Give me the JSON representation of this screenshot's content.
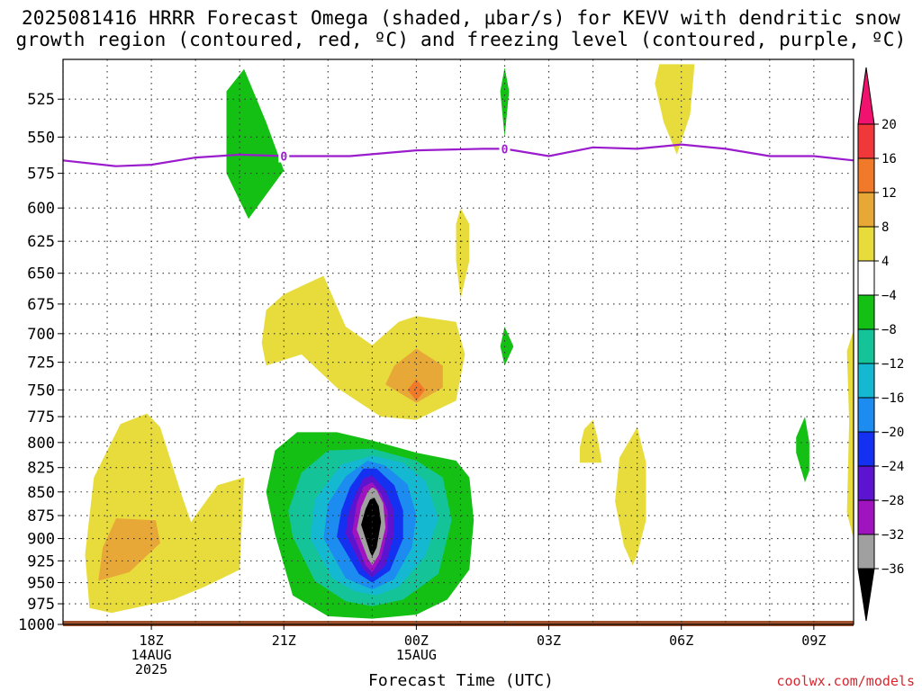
{
  "title": {
    "line1": "2025081416 HRRR Forecast Omega (shaded, µbar/s) for KEVV with dendritic snow",
    "line2": "growth region (contoured, red, ºC) and freezing level (contoured, purple, ºC)"
  },
  "footer": {
    "credit": "coolwx.com/models"
  },
  "chart_data": {
    "type": "heatmap",
    "xlabel": "Forecast Time (UTC)",
    "ylabel": "",
    "y_scale": "log-pressure",
    "ylim": [
      1000,
      500
    ],
    "y_ticks": [
      "525",
      "550",
      "575",
      "600",
      "625",
      "650",
      "675",
      "700",
      "725",
      "750",
      "775",
      "800",
      "825",
      "850",
      "875",
      "900",
      "925",
      "950",
      "975",
      "1000"
    ],
    "x_ticks": [
      {
        "hour": 18,
        "lines": [
          "18Z",
          "14AUG",
          "2025"
        ]
      },
      {
        "hour": 21,
        "lines": [
          "21Z"
        ]
      },
      {
        "hour": 24,
        "lines": [
          "00Z",
          "15AUG"
        ]
      },
      {
        "hour": 27,
        "lines": [
          "03Z"
        ]
      },
      {
        "hour": 30,
        "lines": [
          "06Z"
        ]
      },
      {
        "hour": 33,
        "lines": [
          "09Z"
        ]
      }
    ],
    "xlim_hours": [
      16,
      33.9
    ],
    "grid": true,
    "colorbar": {
      "levels": [
        "20",
        "16",
        "12",
        "8",
        "4",
        "−4",
        "−8",
        "−12",
        "−16",
        "−20",
        "−24",
        "−28",
        "−32",
        "−36"
      ],
      "colors": [
        "#f0126e",
        "#f0383a",
        "#f07a2a",
        "#e8a838",
        "#e8dc3c",
        "#ffffff",
        "#14c014",
        "#14c498",
        "#14b8d0",
        "#1c8cf0",
        "#1430f0",
        "#5c14d0",
        "#a014c0",
        "#a0a0a0",
        "#000000"
      ]
    },
    "freezing_level": {
      "color": "#9a1ccc",
      "label": "0",
      "points": [
        [
          16,
          566
        ],
        [
          17.2,
          570
        ],
        [
          18,
          569
        ],
        [
          19,
          564
        ],
        [
          20,
          562
        ],
        [
          21,
          563
        ],
        [
          22.5,
          563
        ],
        [
          24,
          559
        ],
        [
          25.5,
          558
        ],
        [
          26,
          558
        ],
        [
          27,
          563
        ],
        [
          28,
          557
        ],
        [
          29,
          558
        ],
        [
          30,
          555
        ],
        [
          31,
          558
        ],
        [
          32,
          563
        ],
        [
          33,
          563
        ],
        [
          33.9,
          566
        ]
      ]
    },
    "omega_regions": [
      {
        "value": "4 to 8",
        "color": "#e8dc3c",
        "points": [
          [
            16.6,
            980
          ],
          [
            17.1,
            986
          ],
          [
            18.5,
            970
          ],
          [
            19.2,
            955
          ],
          [
            20,
            935
          ],
          [
            20.1,
            835
          ],
          [
            19.5,
            843
          ],
          [
            19.0,
            875
          ],
          [
            18.9,
            882
          ],
          [
            18.7,
            855
          ],
          [
            18.2,
            785
          ],
          [
            17.9,
            772
          ],
          [
            17.3,
            782
          ],
          [
            16.7,
            835
          ],
          [
            16.5,
            918
          ]
        ]
      },
      {
        "value": "8 to 12",
        "color": "#e8a838",
        "points": [
          [
            16.8,
            948
          ],
          [
            17.5,
            938
          ],
          [
            18.2,
            905
          ],
          [
            18.1,
            880
          ],
          [
            17.2,
            878
          ],
          [
            16.9,
            910
          ]
        ]
      },
      {
        "value": "4 to 8",
        "color": "#e8dc3c",
        "points": [
          [
            20.6,
            728
          ],
          [
            21.4,
            718
          ],
          [
            22.2,
            748
          ],
          [
            23.2,
            775
          ],
          [
            24,
            778
          ],
          [
            24.9,
            760
          ],
          [
            25.1,
            718
          ],
          [
            24.9,
            690
          ],
          [
            24,
            685
          ],
          [
            23.6,
            690
          ],
          [
            23.0,
            710
          ],
          [
            22.4,
            694
          ],
          [
            21.9,
            652
          ],
          [
            21.0,
            667
          ],
          [
            20.6,
            680
          ],
          [
            20.5,
            708
          ]
        ]
      },
      {
        "value": "8 to 12",
        "color": "#e8a838",
        "points": [
          [
            23.3,
            745
          ],
          [
            24,
            762
          ],
          [
            24.6,
            748
          ],
          [
            24.6,
            728
          ],
          [
            24,
            713
          ],
          [
            23.5,
            728
          ]
        ]
      },
      {
        "value": "12 to 16",
        "color": "#f07a2a",
        "points": [
          [
            23.8,
            750
          ],
          [
            24.0,
            760
          ],
          [
            24.2,
            750
          ],
          [
            24.0,
            740
          ]
        ]
      },
      {
        "value": "4 to 8",
        "color": "#e8dc3c",
        "points": [
          [
            25.0,
            600
          ],
          [
            25.2,
            612
          ],
          [
            25.2,
            640
          ],
          [
            25.0,
            671
          ],
          [
            24.9,
            640
          ],
          [
            24.9,
            612
          ]
        ]
      },
      {
        "value": "4 to 8",
        "color": "#e8dc3c",
        "points": [
          [
            29.5,
            503
          ],
          [
            30.3,
            503
          ],
          [
            30.2,
            535
          ],
          [
            29.9,
            562
          ],
          [
            29.6,
            540
          ],
          [
            29.4,
            515
          ]
        ]
      },
      {
        "value": "4 to 8",
        "color": "#e8dc3c",
        "points": [
          [
            27.7,
            820
          ],
          [
            28.2,
            820
          ],
          [
            28.1,
            795
          ],
          [
            28.0,
            778
          ],
          [
            27.8,
            787
          ],
          [
            27.7,
            805
          ]
        ]
      },
      {
        "value": "4 to 8",
        "color": "#e8dc3c",
        "points": [
          [
            28.6,
            815
          ],
          [
            29.0,
            785
          ],
          [
            29.2,
            820
          ],
          [
            29.2,
            880
          ],
          [
            29.0,
            918
          ],
          [
            28.9,
            930
          ],
          [
            28.7,
            908
          ],
          [
            28.5,
            860
          ]
        ]
      },
      {
        "value": "4 to 8",
        "color": "#e8dc3c",
        "points": [
          [
            33.9,
            697
          ],
          [
            33.75,
            715
          ],
          [
            33.8,
            780
          ],
          [
            33.75,
            872
          ],
          [
            33.9,
            900
          ]
        ]
      },
      {
        "value": "-4 to -8",
        "color": "#14c014",
        "points": [
          [
            19.7,
            520
          ],
          [
            20.1,
            506
          ],
          [
            20.6,
            540
          ],
          [
            21.0,
            573
          ],
          [
            20.2,
            608
          ],
          [
            19.7,
            575
          ],
          [
            19.7,
            545
          ]
        ]
      },
      {
        "value": "-4 to -8",
        "color": "#14c014",
        "points": [
          [
            25.9,
            520
          ],
          [
            26.0,
            505
          ],
          [
            26.1,
            520
          ],
          [
            26.0,
            550
          ]
        ]
      },
      {
        "value": "-4 to -8",
        "color": "#14c014",
        "points": [
          [
            25.9,
            711
          ],
          [
            26.0,
            694
          ],
          [
            26.2,
            711
          ],
          [
            26.0,
            728
          ]
        ]
      },
      {
        "value": "-4 to -8",
        "color": "#14c014",
        "points": [
          [
            32.6,
            795
          ],
          [
            32.8,
            775
          ],
          [
            32.9,
            800
          ],
          [
            32.9,
            828
          ],
          [
            32.8,
            840
          ],
          [
            32.6,
            810
          ]
        ]
      },
      {
        "value": "-4 to -8",
        "color": "#14c014",
        "points": [
          [
            20.8,
            895
          ],
          [
            21.2,
            965
          ],
          [
            22,
            990
          ],
          [
            23,
            993
          ],
          [
            24,
            988
          ],
          [
            24.7,
            970
          ],
          [
            25.2,
            935
          ],
          [
            25.3,
            880
          ],
          [
            25.2,
            835
          ],
          [
            24.9,
            818
          ],
          [
            24.0,
            810
          ],
          [
            23.0,
            798
          ],
          [
            22.2,
            790
          ],
          [
            21.3,
            790
          ],
          [
            20.8,
            808
          ],
          [
            20.6,
            850
          ]
        ]
      },
      {
        "value": "-8 to -12",
        "color": "#14c498",
        "points": [
          [
            21.2,
            898
          ],
          [
            21.7,
            948
          ],
          [
            22.4,
            972
          ],
          [
            23,
            978
          ],
          [
            23.7,
            970
          ],
          [
            24.5,
            940
          ],
          [
            24.8,
            880
          ],
          [
            24.6,
            835
          ],
          [
            24.0,
            818
          ],
          [
            23.0,
            806
          ],
          [
            22.0,
            808
          ],
          [
            21.4,
            830
          ],
          [
            21.1,
            870
          ]
        ]
      },
      {
        "value": "-12 to -16",
        "color": "#14b8d0",
        "points": [
          [
            21.6,
            900
          ],
          [
            22.1,
            945
          ],
          [
            22.6,
            960
          ],
          [
            23.1,
            965
          ],
          [
            23.6,
            955
          ],
          [
            24.2,
            920
          ],
          [
            24.5,
            878
          ],
          [
            24.2,
            838
          ],
          [
            23.7,
            820
          ],
          [
            23.0,
            813
          ],
          [
            22.3,
            822
          ],
          [
            21.7,
            858
          ]
        ]
      },
      {
        "value": "-16 to -20",
        "color": "#1c8cf0",
        "points": [
          [
            21.9,
            900
          ],
          [
            22.4,
            945
          ],
          [
            23.0,
            958
          ],
          [
            23.5,
            946
          ],
          [
            23.9,
            910
          ],
          [
            24.0,
            875
          ],
          [
            23.8,
            842
          ],
          [
            23.3,
            823
          ],
          [
            22.9,
            818
          ],
          [
            22.4,
            834
          ],
          [
            22.0,
            862
          ]
        ]
      },
      {
        "value": "-20 to -24",
        "color": "#1430f0",
        "points": [
          [
            22.2,
            898
          ],
          [
            22.7,
            940
          ],
          [
            23.0,
            950
          ],
          [
            23.4,
            936
          ],
          [
            23.7,
            900
          ],
          [
            23.7,
            870
          ],
          [
            23.5,
            843
          ],
          [
            23.1,
            826
          ],
          [
            22.8,
            826
          ],
          [
            22.5,
            845
          ],
          [
            22.3,
            870
          ]
        ]
      },
      {
        "value": "-24 to -28",
        "color": "#5c14d0",
        "points": [
          [
            22.4,
            895
          ],
          [
            22.8,
            935
          ],
          [
            23.0,
            944
          ],
          [
            23.3,
            930
          ],
          [
            23.5,
            895
          ],
          [
            23.5,
            870
          ],
          [
            23.3,
            848
          ],
          [
            23.0,
            833
          ],
          [
            22.8,
            836
          ],
          [
            22.6,
            855
          ],
          [
            22.45,
            875
          ]
        ]
      },
      {
        "value": "-28 to -32",
        "color": "#a014c0",
        "points": [
          [
            22.55,
            893
          ],
          [
            22.85,
            930
          ],
          [
            23.0,
            938
          ],
          [
            23.2,
            922
          ],
          [
            23.35,
            892
          ],
          [
            23.35,
            870
          ],
          [
            23.2,
            852
          ],
          [
            23.0,
            840
          ],
          [
            22.8,
            845
          ],
          [
            22.65,
            862
          ]
        ]
      },
      {
        "value": "-32 to -36",
        "color": "#a0a0a0",
        "points": [
          [
            22.65,
            890
          ],
          [
            22.9,
            922
          ],
          [
            23.0,
            930
          ],
          [
            23.15,
            918
          ],
          [
            23.3,
            888
          ],
          [
            23.25,
            862
          ],
          [
            23.1,
            848
          ],
          [
            23.0,
            845
          ],
          [
            22.9,
            850
          ],
          [
            22.75,
            866
          ]
        ]
      },
      {
        "value": "< -36",
        "color": "#000000",
        "points": [
          [
            22.75,
            885
          ],
          [
            22.95,
            915
          ],
          [
            23.0,
            920
          ],
          [
            23.1,
            910
          ],
          [
            23.2,
            882
          ],
          [
            23.15,
            865
          ],
          [
            23.05,
            856
          ],
          [
            22.95,
            858
          ],
          [
            22.85,
            868
          ]
        ]
      }
    ],
    "surface": {
      "color": "#a0522d",
      "pressure": 1000
    }
  }
}
